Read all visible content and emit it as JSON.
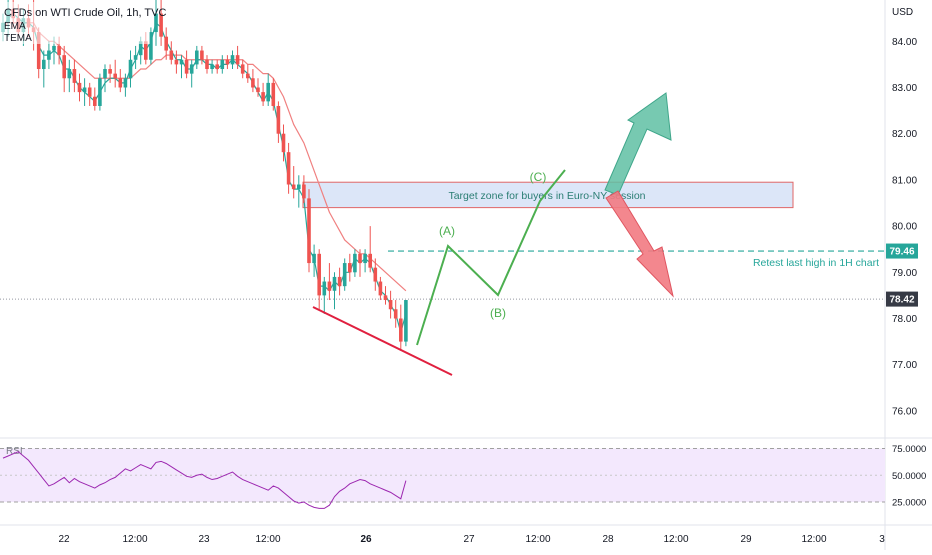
{
  "header": {
    "symbol_title": "CFDs on WTI Crude Oil, 1h, TVC",
    "indicator_1": "EMA",
    "indicator_2": "TEMA",
    "currency": "USD"
  },
  "chart_data": {
    "type": "candlestick",
    "x_ticks": [
      "22",
      "12:00",
      "23",
      "12:00",
      "26",
      "27",
      "12:00",
      "28",
      "12:00",
      "29",
      "12:00",
      "3"
    ],
    "y_ticks": [
      "84.00",
      "83.00",
      "82.00",
      "81.00",
      "80.00",
      "79.00",
      "78.00",
      "77.00",
      "76.00"
    ],
    "ylim": [
      75.4,
      85.1
    ],
    "candles": [
      [
        84.2,
        84.6,
        84.0,
        84.4
      ],
      [
        84.4,
        84.9,
        84.1,
        84.7
      ],
      [
        84.7,
        84.9,
        84.3,
        84.5
      ],
      [
        84.5,
        84.8,
        84.1,
        84.2
      ],
      [
        84.2,
        84.7,
        83.9,
        84.5
      ],
      [
        84.5,
        84.8,
        84.1,
        84.3
      ],
      [
        84.3,
        84.9,
        83.8,
        84.2
      ],
      [
        84.2,
        84.3,
        83.2,
        83.4
      ],
      [
        83.4,
        83.8,
        83.0,
        83.6
      ],
      [
        83.6,
        84.0,
        83.4,
        83.8
      ],
      [
        83.8,
        84.1,
        83.5,
        83.9
      ],
      [
        83.9,
        84.1,
        83.5,
        83.7
      ],
      [
        83.7,
        83.9,
        82.9,
        83.2
      ],
      [
        83.2,
        83.6,
        82.9,
        83.4
      ],
      [
        83.4,
        83.6,
        82.9,
        83.1
      ],
      [
        83.1,
        83.3,
        82.7,
        82.9
      ],
      [
        82.9,
        83.2,
        82.6,
        83.0
      ],
      [
        83.0,
        83.1,
        82.6,
        82.8
      ],
      [
        82.8,
        83.0,
        82.5,
        82.6
      ],
      [
        82.6,
        83.3,
        82.5,
        83.2
      ],
      [
        83.2,
        83.5,
        82.9,
        83.4
      ],
      [
        83.4,
        83.5,
        83.1,
        83.3
      ],
      [
        83.3,
        83.6,
        83.0,
        83.2
      ],
      [
        83.2,
        83.4,
        82.9,
        83.0
      ],
      [
        83.0,
        83.3,
        82.8,
        83.2
      ],
      [
        83.2,
        83.8,
        83.0,
        83.6
      ],
      [
        83.6,
        83.9,
        83.4,
        83.7
      ],
      [
        83.7,
        84.1,
        83.5,
        84.0
      ],
      [
        84.0,
        84.2,
        83.5,
        83.6
      ],
      [
        83.6,
        84.3,
        83.5,
        84.2
      ],
      [
        84.2,
        84.9,
        83.9,
        84.6
      ],
      [
        84.6,
        84.9,
        83.9,
        84.1
      ],
      [
        84.1,
        84.3,
        83.6,
        83.8
      ],
      [
        83.8,
        84.0,
        83.5,
        83.6
      ],
      [
        83.6,
        83.8,
        83.3,
        83.5
      ],
      [
        83.5,
        83.7,
        83.2,
        83.6
      ],
      [
        83.6,
        83.8,
        83.2,
        83.3
      ],
      [
        83.3,
        83.6,
        83.0,
        83.5
      ],
      [
        83.5,
        83.9,
        83.4,
        83.8
      ],
      [
        83.8,
        83.9,
        83.5,
        83.6
      ],
      [
        83.6,
        83.7,
        83.3,
        83.4
      ],
      [
        83.4,
        83.6,
        83.3,
        83.5
      ],
      [
        83.5,
        83.6,
        83.3,
        83.4
      ],
      [
        83.4,
        83.7,
        83.3,
        83.6
      ],
      [
        83.6,
        83.7,
        83.4,
        83.5
      ],
      [
        83.5,
        83.8,
        83.4,
        83.7
      ],
      [
        83.7,
        83.9,
        83.4,
        83.5
      ],
      [
        83.5,
        83.6,
        83.2,
        83.3
      ],
      [
        83.3,
        83.5,
        83.1,
        83.2
      ],
      [
        83.2,
        83.4,
        82.9,
        83.0
      ],
      [
        83.0,
        83.2,
        82.8,
        82.9
      ],
      [
        82.9,
        83.1,
        82.6,
        82.7
      ],
      [
        82.7,
        83.3,
        82.6,
        83.1
      ],
      [
        83.1,
        83.2,
        82.5,
        82.6
      ],
      [
        82.6,
        82.7,
        81.8,
        82.0
      ],
      [
        82.0,
        82.2,
        81.4,
        81.6
      ],
      [
        81.6,
        81.8,
        80.7,
        80.9
      ],
      [
        80.9,
        81.3,
        80.6,
        80.8
      ],
      [
        80.8,
        81.1,
        80.4,
        80.9
      ],
      [
        80.9,
        81.1,
        80.5,
        80.6
      ],
      [
        80.6,
        80.8,
        79.0,
        79.2
      ],
      [
        79.2,
        79.6,
        78.9,
        79.4
      ],
      [
        79.4,
        79.5,
        78.2,
        78.5
      ],
      [
        78.5,
        78.9,
        78.1,
        78.8
      ],
      [
        78.8,
        79.2,
        78.4,
        78.6
      ],
      [
        78.6,
        79.0,
        78.2,
        78.9
      ],
      [
        78.9,
        79.1,
        78.5,
        78.7
      ],
      [
        78.7,
        79.3,
        78.6,
        79.2
      ],
      [
        79.2,
        79.4,
        78.8,
        79.0
      ],
      [
        79.0,
        79.5,
        78.9,
        79.4
      ],
      [
        79.4,
        79.5,
        78.9,
        79.2
      ],
      [
        79.2,
        79.5,
        79.0,
        79.4
      ],
      [
        79.4,
        80.0,
        79.0,
        79.1
      ],
      [
        79.1,
        79.3,
        78.6,
        78.8
      ],
      [
        78.8,
        78.9,
        78.4,
        78.5
      ],
      [
        78.5,
        78.7,
        78.3,
        78.4
      ],
      [
        78.4,
        78.6,
        78.0,
        78.2
      ],
      [
        78.2,
        78.4,
        77.8,
        78.0
      ],
      [
        78.0,
        78.3,
        77.3,
        77.5
      ],
      [
        77.5,
        78.4,
        77.4,
        78.4
      ]
    ],
    "ema": [
      84.3,
      84.4,
      84.4,
      84.4,
      84.4,
      84.4,
      84.4,
      84.2,
      84.1,
      84.0,
      84.0,
      83.9,
      83.8,
      83.7,
      83.6,
      83.5,
      83.4,
      83.3,
      83.2,
      83.2,
      83.2,
      83.2,
      83.2,
      83.2,
      83.2,
      83.2,
      83.3,
      83.4,
      83.4,
      83.5,
      83.6,
      83.6,
      83.7,
      83.7,
      83.7,
      83.7,
      83.6,
      83.6,
      83.6,
      83.6,
      83.6,
      83.6,
      83.6,
      83.6,
      83.6,
      83.6,
      83.6,
      83.6,
      83.5,
      83.5,
      83.4,
      83.3,
      83.3,
      83.2,
      83.0,
      82.8,
      82.5,
      82.2,
      82.0,
      81.8,
      81.5,
      81.2,
      80.9,
      80.6,
      80.3,
      80.1,
      79.9,
      79.7,
      79.6,
      79.5,
      79.4,
      79.4,
      79.3,
      79.2,
      79.1,
      79.0,
      78.9,
      78.8,
      78.7,
      78.6
    ],
    "tema": [
      84.3,
      84.5,
      84.6,
      84.5,
      84.4,
      84.4,
      84.3,
      83.9,
      83.7,
      83.7,
      83.8,
      83.7,
      83.4,
      83.4,
      83.2,
      83.0,
      82.9,
      82.8,
      82.7,
      82.9,
      83.1,
      83.2,
      83.2,
      83.1,
      83.1,
      83.4,
      83.6,
      83.9,
      83.8,
      84.0,
      84.4,
      84.3,
      84.0,
      83.8,
      83.6,
      83.6,
      83.4,
      83.4,
      83.6,
      83.6,
      83.5,
      83.5,
      83.4,
      83.5,
      83.5,
      83.6,
      83.5,
      83.4,
      83.3,
      83.1,
      82.9,
      82.7,
      82.9,
      82.7,
      82.2,
      81.7,
      81.0,
      80.8,
      80.8,
      80.6,
      79.5,
      79.3,
      78.7,
      78.7,
      78.6,
      78.8,
      78.7,
      79.0,
      79.0,
      79.3,
      79.2,
      79.3,
      79.2,
      78.9,
      78.6,
      78.5,
      78.3,
      78.1,
      77.7,
      78.1
    ],
    "rsi": [
      66,
      68,
      70,
      72,
      68,
      64,
      58,
      52,
      46,
      40,
      42,
      45,
      48,
      43,
      47,
      44,
      42,
      40,
      38,
      41,
      43,
      46,
      48,
      52,
      56,
      54,
      57,
      60,
      58,
      56,
      62,
      63,
      61,
      58,
      55,
      52,
      49,
      48,
      50,
      51,
      48,
      46,
      47,
      49,
      51,
      53,
      49,
      46,
      44,
      42,
      40,
      38,
      36,
      40,
      38,
      34,
      30,
      26,
      24,
      25,
      22,
      20,
      19,
      19,
      22,
      30,
      35,
      38,
      42,
      44,
      46,
      45,
      42,
      40,
      38,
      36,
      34,
      31,
      28,
      45
    ],
    "rsi_levels": [
      "75.0000",
      "50.0000",
      "25.0000"
    ],
    "rsi_label": "RSI",
    "price_tags": {
      "resistance": "79.46",
      "last": "78.42"
    },
    "target_zone": {
      "top": 80.95,
      "bottom": 80.4,
      "label": "Target zone for buyers in Euro-NY session"
    },
    "retest_label": "Retest last high in 1H chart",
    "waves": {
      "A": "(A)",
      "B": "(B)",
      "C": "(C)"
    },
    "colors": {
      "up": "#26a69a",
      "down": "#ef5350",
      "ema": "#f08080",
      "tema": "#26a69a",
      "path": "#4caf50",
      "teal_arrow": "#5fbfa3",
      "red_arrow": "#f27a82",
      "zone_fill": "#dce6f8",
      "zone_border": "#e06666",
      "rsi": "#9c27b0",
      "rsi_band": "#f3e8fd"
    }
  }
}
